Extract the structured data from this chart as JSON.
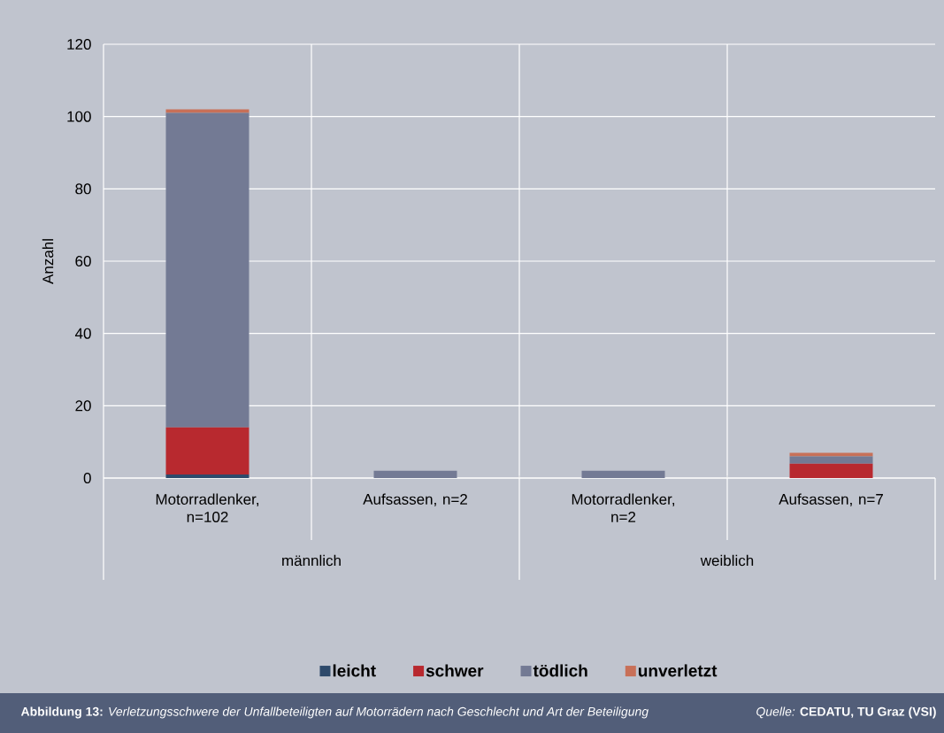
{
  "chart_data": {
    "type": "bar",
    "stacked": true,
    "ylabel": "Anzahl",
    "categories": [
      "Motorradlenker, n=102",
      "Aufsassen, n=2",
      "Motorradlenker, n=2",
      "Aufsassen, n=7"
    ],
    "series": [
      {
        "name": "leicht",
        "color": "#2e4a6b",
        "values": [
          1,
          0,
          0,
          0
        ]
      },
      {
        "name": "schwer",
        "color": "#b8292f",
        "values": [
          13,
          0,
          0,
          4
        ]
      },
      {
        "name": "tödlich",
        "color": "#737a94",
        "values": [
          87,
          2,
          2,
          2
        ]
      },
      {
        "name": "unverletzt",
        "color": "#c87058",
        "values": [
          1,
          0,
          0,
          1
        ]
      }
    ],
    "ylim": [
      0,
      120
    ],
    "yticks": [
      0,
      20,
      40,
      60,
      80,
      100,
      120
    ],
    "grid": "y",
    "legend": "bottom",
    "annotations": [
      "männlich",
      "weiblich",
      "**Abbildung 13:** *Verletzungsschwere der Unfallbeteiligten auf Motorrädern nach Geschlecht und Art der Beteiligung*",
      "*Quelle:* **CEDATU, TU Graz (VSI)**"
    ]
  }
}
